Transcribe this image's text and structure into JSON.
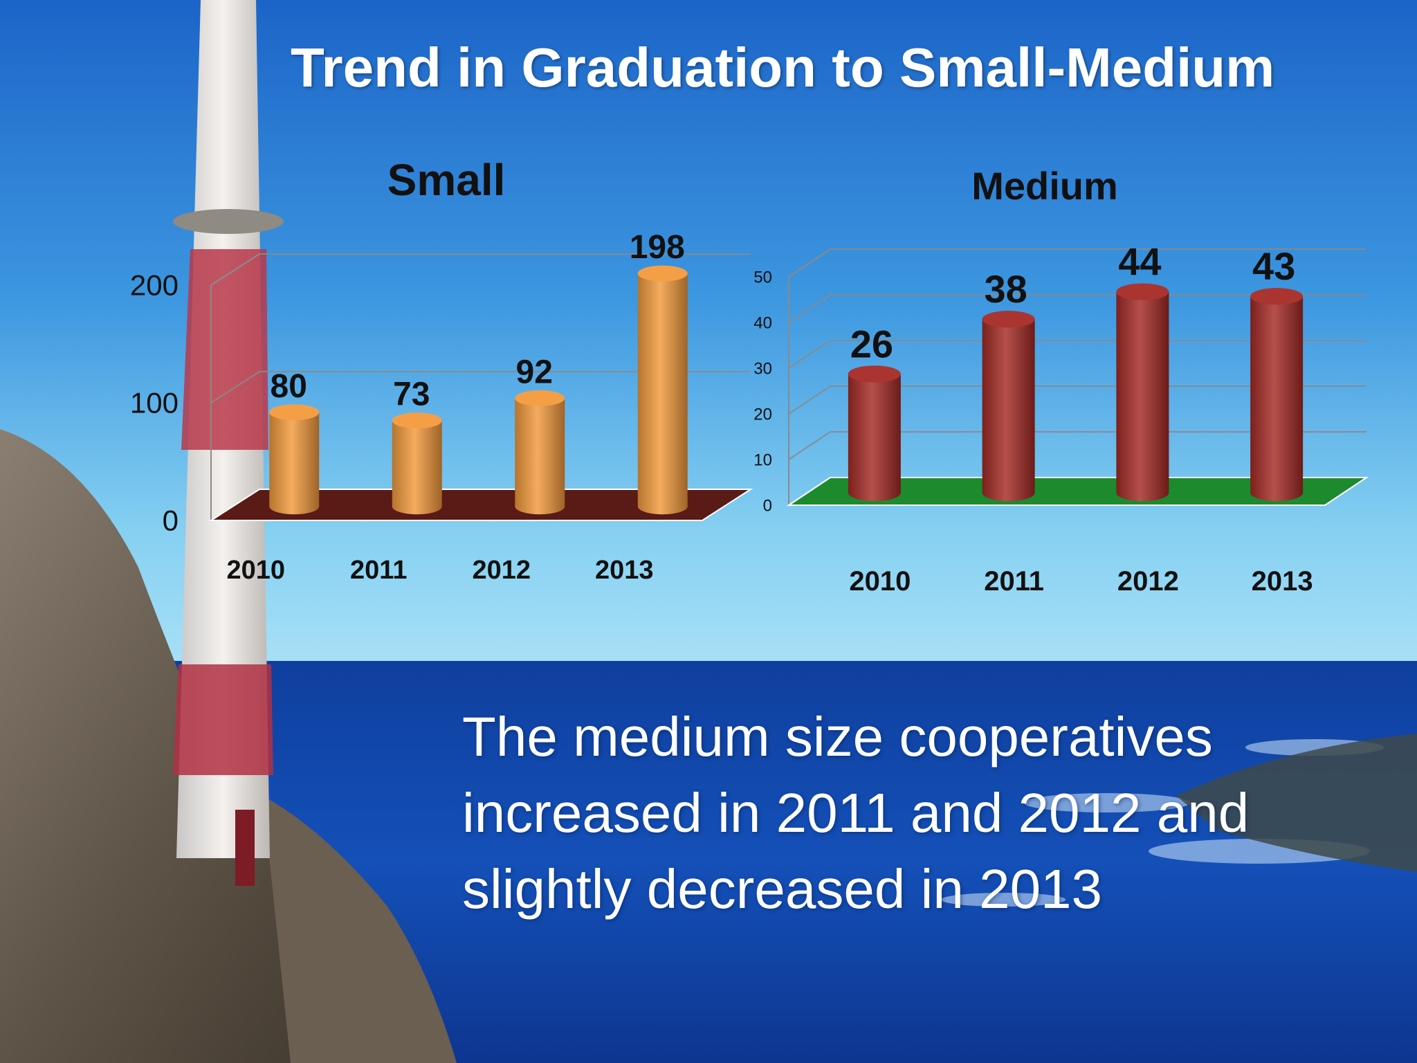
{
  "slide": {
    "title": "Trend in Graduation to  Small-Medium",
    "caption": "The medium size cooperatives increased in 2011 and 2012 and slightly decreased in 2013"
  },
  "colors": {
    "small_bar": "#f39a3c",
    "small_floor": "#5a1a16",
    "medium_bar": "#a52a25",
    "medium_floor": "#1e8a2e",
    "title_text": "#ffffff",
    "chart_text": "#111111"
  },
  "chart_data": [
    {
      "type": "bar",
      "title": "Small",
      "categories": [
        "2010",
        "2011",
        "2012",
        "2013"
      ],
      "values": [
        80,
        73,
        92,
        198
      ],
      "data_labels": [
        "80",
        "73",
        "92",
        "198"
      ],
      "ylim": [
        0,
        200
      ],
      "yticks": [
        "0",
        "100",
        "200"
      ],
      "grid": true,
      "style": "3d-cylinder"
    },
    {
      "type": "bar",
      "title": "Medium",
      "categories": [
        "2010",
        "2011",
        "2012",
        "2013"
      ],
      "values": [
        26,
        38,
        44,
        43
      ],
      "data_labels": [
        "26",
        "38",
        "44",
        "43"
      ],
      "ylim": [
        0,
        50
      ],
      "yticks": [
        "0",
        "10",
        "20",
        "30",
        "40",
        "50"
      ],
      "grid": true,
      "style": "3d-cylinder"
    }
  ]
}
